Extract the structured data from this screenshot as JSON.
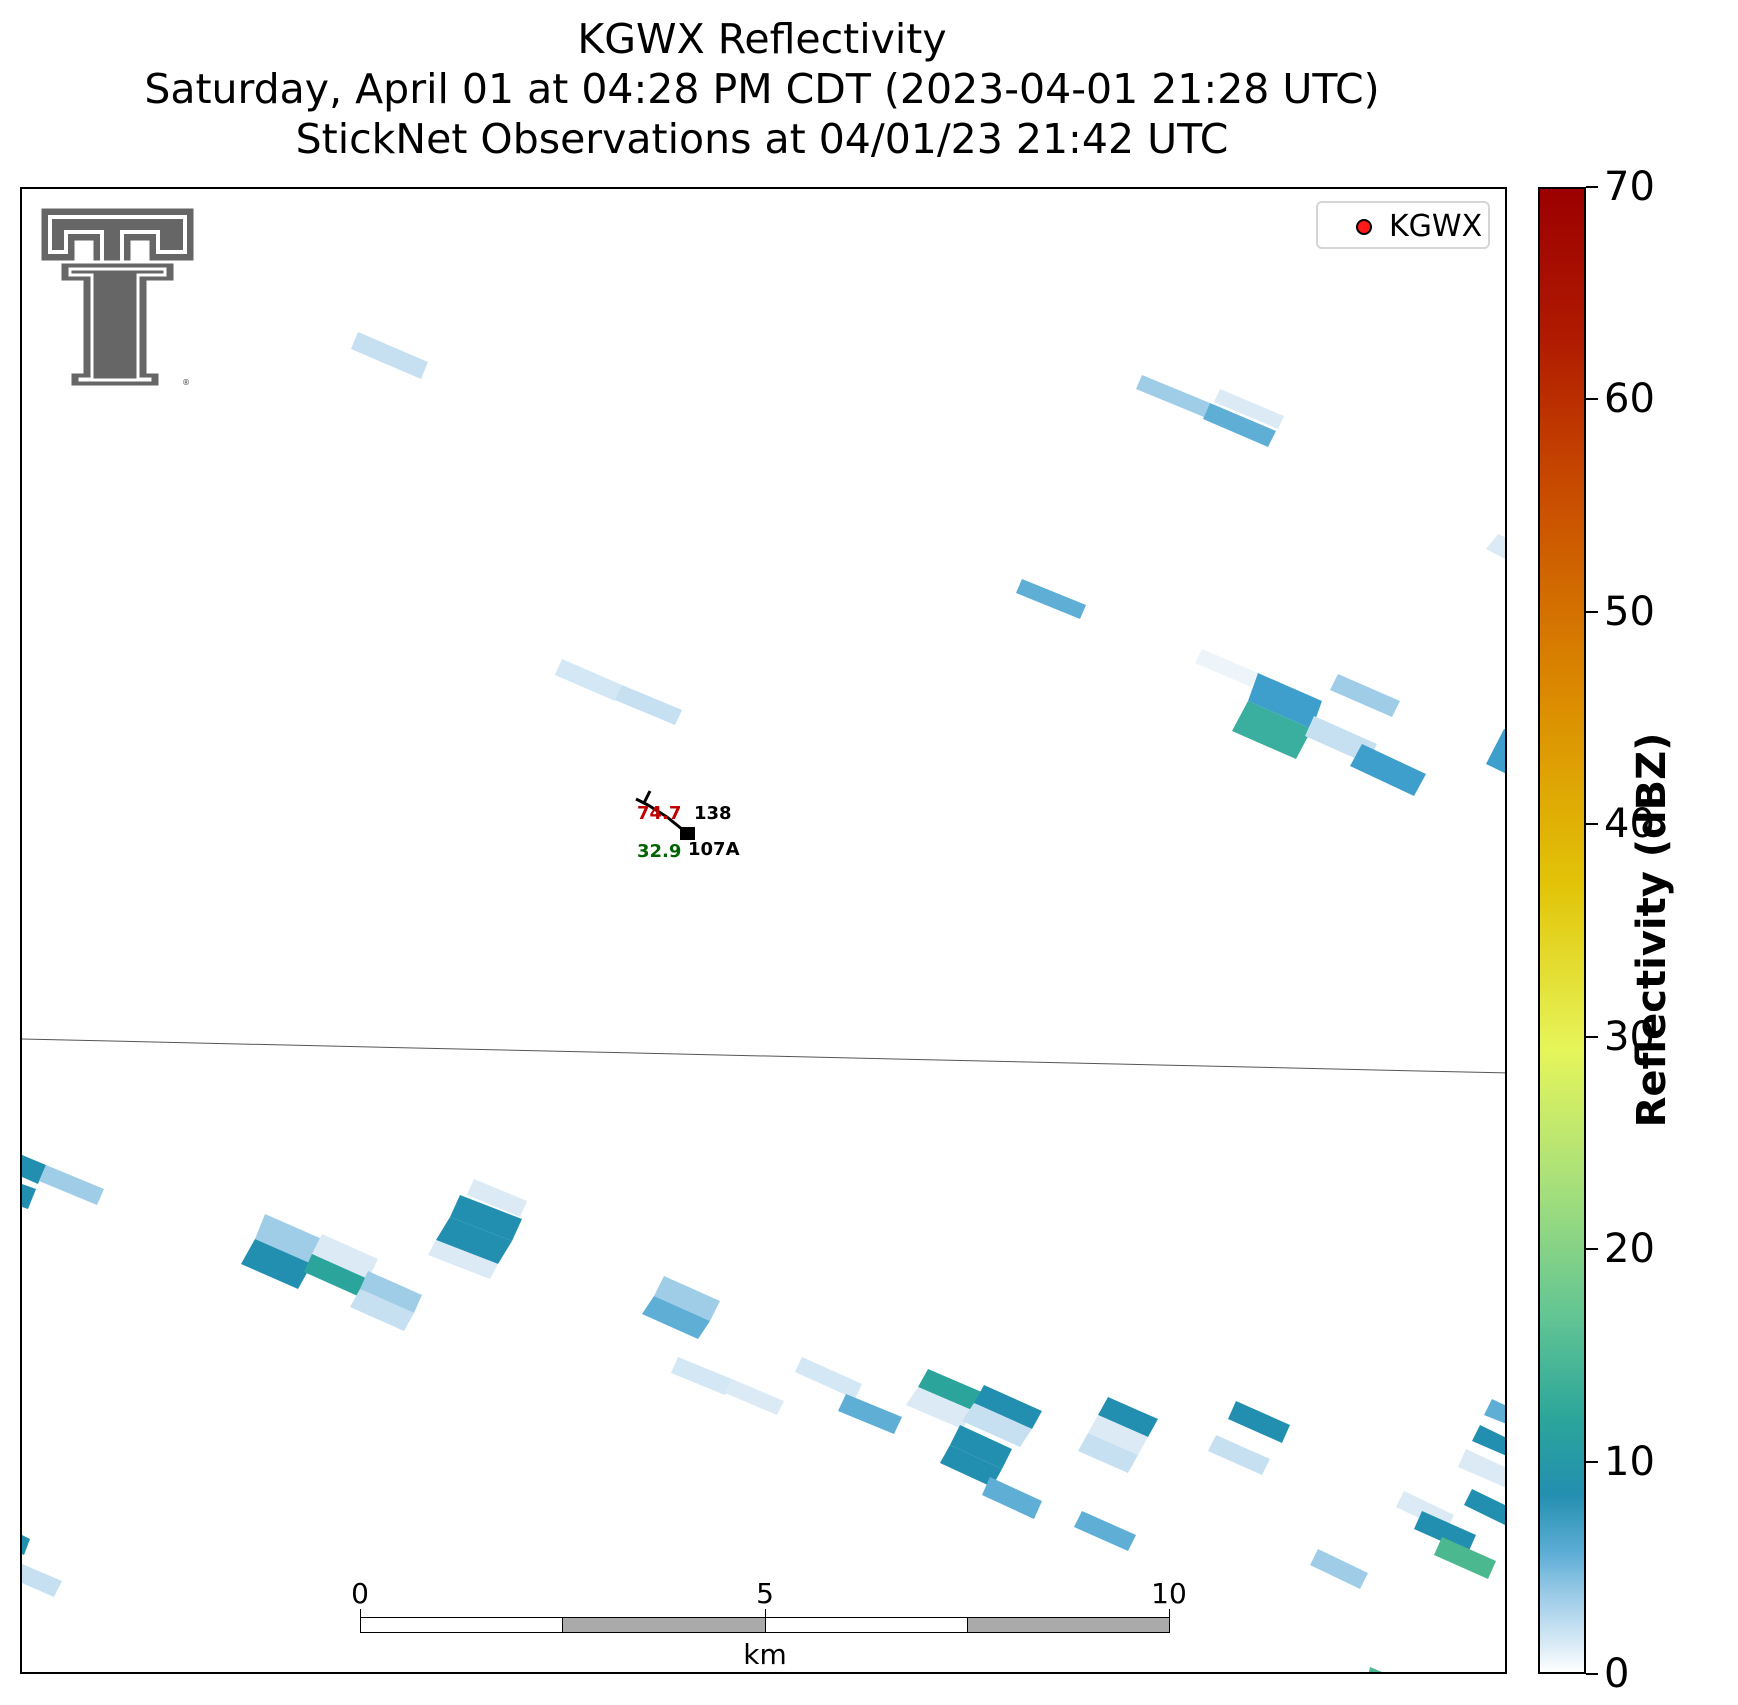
{
  "header": {
    "title": "KGWX Reflectivity",
    "subtitle": "Saturday, April 01 at 04:28 PM CDT (2023-04-01 21:28 UTC)",
    "obs_line": "StickNet Observations at 04/01/23 21:42 UTC"
  },
  "legend": {
    "label": "KGWX",
    "marker_color": "#ff1a1a"
  },
  "station": {
    "temperature": "74.7",
    "temperature_color": "#c00000",
    "dewpoint": "32.9",
    "dewpoint_color": "#006400",
    "pressure": "138",
    "id": "107A"
  },
  "colorbar": {
    "label": "Reflectivity (dBZ)",
    "ticks": [
      "0",
      "10",
      "20",
      "30",
      "40",
      "50",
      "60",
      "70"
    ],
    "min": 0,
    "max": 70
  },
  "scalebar": {
    "ticks": [
      "0",
      "5",
      "10"
    ],
    "unit": "km"
  },
  "logo": {
    "name": "texas-tech-double-t-logo"
  }
}
